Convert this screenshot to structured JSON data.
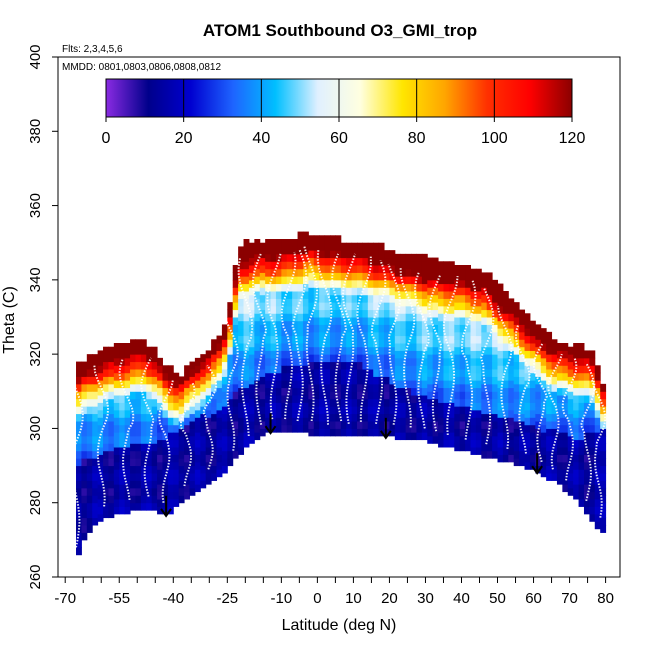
{
  "chart_data": {
    "type": "heatmap",
    "title": "ATOM1 Southbound O3_GMI_trop",
    "xlabel": "Latitude (deg N)",
    "ylabel": "Theta (C)",
    "xlim": [
      -70,
      80
    ],
    "ylim": [
      260,
      400
    ],
    "x_tick_labels": [
      "-70",
      "-55",
      "-40",
      "-25",
      "-10",
      "0",
      "10",
      "20",
      "30",
      "40",
      "50",
      "60",
      "70",
      "80"
    ],
    "x_tick_values": [
      -70,
      -55,
      -40,
      -25,
      -10,
      0,
      10,
      20,
      30,
      40,
      50,
      60,
      70,
      80
    ],
    "x_minor_ticks": [
      -65,
      -60,
      -50,
      -45,
      -35,
      -30,
      -20,
      -15,
      -5,
      5,
      15,
      25,
      35,
      45,
      55,
      65,
      75
    ],
    "y_tick_values": [
      260,
      280,
      300,
      320,
      340,
      360,
      380,
      400
    ],
    "y_tick_labels": [
      "260",
      "280",
      "300",
      "320",
      "340",
      "360",
      "380",
      "400"
    ],
    "flights_label": "Flts: 2,3,4,5,6",
    "dates_label": "MMDD: 0801,0803,0806,0808,0812",
    "colorbar": {
      "range": [
        0,
        120
      ],
      "ticks": [
        0,
        20,
        40,
        60,
        80,
        100,
        120
      ],
      "tick_labels": [
        "0",
        "20",
        "40",
        "60",
        "80",
        "100",
        "120"
      ],
      "colors": [
        "#8a2be2",
        "#00008b",
        "#0000d0",
        "#1e64ff",
        "#00bfff",
        "#e0f0ff",
        "#ffffe0",
        "#ffe600",
        "#ffa500",
        "#ff3000",
        "#ff0000",
        "#8b0000"
      ]
    },
    "arrow_latitudes": [
      -42,
      -13,
      19,
      61
    ],
    "envelope": {
      "lats": [
        -67,
        -64,
        -60,
        -56,
        -52,
        -48,
        -45,
        -42,
        -38,
        -34,
        -30,
        -26,
        -24,
        -22,
        -18,
        -14,
        -10,
        -6,
        -2,
        2,
        6,
        10,
        14,
        18,
        22,
        26,
        30,
        34,
        38,
        42,
        46,
        50,
        54,
        58,
        62,
        66,
        70,
        74,
        76,
        78,
        79
      ],
      "bottom": [
        265,
        272,
        276,
        277,
        278,
        279,
        278,
        277,
        280,
        283,
        286,
        288,
        291,
        293,
        297,
        299,
        300,
        299,
        299,
        298,
        299,
        298,
        299,
        298,
        298,
        297,
        297,
        296,
        295,
        294,
        293,
        292,
        291,
        290,
        288,
        286,
        283,
        279,
        276,
        273,
        272
      ],
      "top": [
        316,
        318,
        320,
        321,
        322,
        323,
        320,
        316,
        313,
        318,
        320,
        327,
        334,
        348,
        350,
        350,
        350,
        351,
        352,
        351,
        350,
        350,
        349,
        348,
        347,
        346,
        345,
        344,
        344,
        343,
        342,
        338,
        334,
        330,
        326,
        323,
        322,
        321,
        320,
        316,
        312
      ],
      "low_o3_top": [
        290,
        292,
        293,
        294,
        295,
        296,
        297,
        298,
        300,
        302,
        304,
        306,
        308,
        310,
        312,
        314,
        316,
        318,
        318,
        318,
        318,
        318,
        316,
        314,
        312,
        310,
        308,
        307,
        306,
        305,
        304,
        303,
        302,
        301,
        300,
        299,
        298,
        298,
        300,
        300,
        300
      ]
    }
  }
}
